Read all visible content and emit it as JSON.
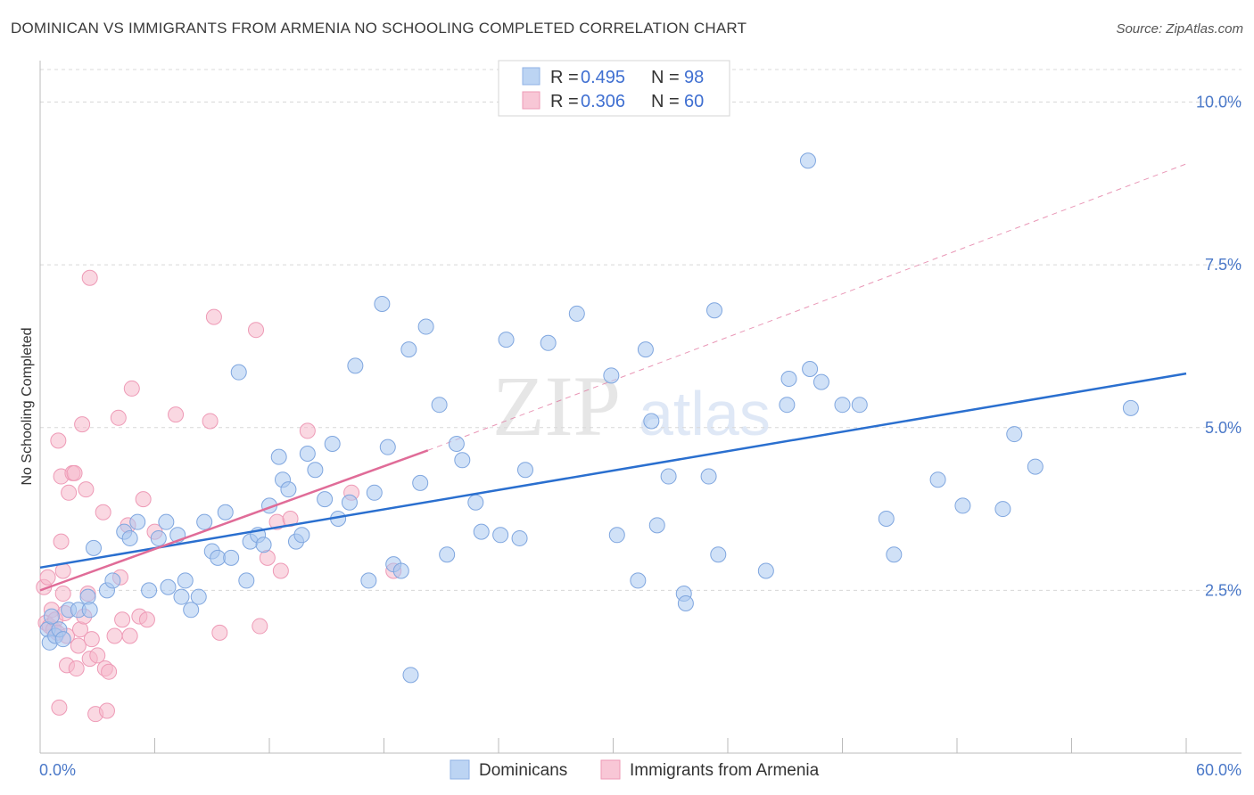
{
  "title": "DOMINICAN VS IMMIGRANTS FROM ARMENIA NO SCHOOLING COMPLETED CORRELATION CHART",
  "source": "Source: ZipAtlas.com",
  "watermark": {
    "zip": "ZIP",
    "atlas": "atlas"
  },
  "colors": {
    "blue": "#a9c8f0",
    "blue_line": "#2a6fcf",
    "pink": "#f5b8cb",
    "pink_line": "#e06c98",
    "tick": "#4a78c8",
    "grid": "#d8d8d8"
  },
  "legend_box": {
    "rows": [
      {
        "r_label": "R =",
        "r_value": "0.495",
        "n_label": "N =",
        "n_value": "98"
      },
      {
        "r_label": "R =",
        "r_value": "0.306",
        "n_label": "N =",
        "n_value": "60"
      }
    ]
  },
  "bottom_legend": [
    "Dominicans",
    "Immigrants from Armenia"
  ],
  "chart_data": {
    "type": "scatter",
    "title": "DOMINICAN VS IMMIGRANTS FROM ARMENIA NO SCHOOLING COMPLETED CORRELATION CHART",
    "xlabel": "",
    "ylabel": "No Schooling Completed",
    "xlim": [
      0,
      60
    ],
    "ylim": [
      0,
      10.5
    ],
    "x_tick_labels": [
      "0.0%",
      "60.0%"
    ],
    "y_ticks": [
      2.5,
      5.0,
      7.5,
      10.0
    ],
    "y_tick_labels": [
      "2.5%",
      "5.0%",
      "7.5%",
      "10.0%"
    ],
    "grid": true,
    "legend_position": "top-center",
    "series": [
      {
        "name": "Dominicans",
        "R": 0.495,
        "N": 98,
        "trend": {
          "x": [
            0,
            60
          ],
          "y": [
            2.85,
            5.83
          ]
        },
        "points": [
          [
            0.4,
            1.9
          ],
          [
            0.5,
            1.7
          ],
          [
            0.6,
            2.1
          ],
          [
            0.8,
            1.8
          ],
          [
            1.0,
            1.9
          ],
          [
            1.2,
            1.75
          ],
          [
            1.5,
            2.2
          ],
          [
            2.0,
            2.2
          ],
          [
            2.5,
            2.4
          ],
          [
            2.8,
            3.15
          ],
          [
            3.5,
            2.5
          ],
          [
            3.8,
            2.65
          ],
          [
            4.4,
            3.4
          ],
          [
            4.7,
            3.3
          ],
          [
            5.1,
            3.55
          ],
          [
            5.7,
            2.5
          ],
          [
            6.2,
            3.3
          ],
          [
            6.6,
            3.55
          ],
          [
            6.7,
            2.55
          ],
          [
            7.2,
            3.35
          ],
          [
            7.4,
            2.4
          ],
          [
            7.6,
            2.65
          ],
          [
            7.9,
            2.2
          ],
          [
            8.3,
            2.4
          ],
          [
            8.6,
            3.55
          ],
          [
            9.0,
            3.1
          ],
          [
            9.3,
            3.0
          ],
          [
            9.7,
            3.7
          ],
          [
            10.0,
            3.0
          ],
          [
            10.4,
            5.85
          ],
          [
            10.8,
            2.65
          ],
          [
            11.0,
            3.25
          ],
          [
            11.4,
            3.35
          ],
          [
            11.7,
            3.2
          ],
          [
            12.0,
            3.8
          ],
          [
            12.5,
            4.55
          ],
          [
            12.7,
            4.2
          ],
          [
            13.0,
            4.05
          ],
          [
            13.4,
            3.25
          ],
          [
            13.7,
            3.35
          ],
          [
            14.0,
            4.6
          ],
          [
            14.4,
            4.35
          ],
          [
            14.9,
            3.9
          ],
          [
            15.3,
            4.75
          ],
          [
            15.6,
            3.6
          ],
          [
            16.2,
            3.85
          ],
          [
            16.5,
            5.95
          ],
          [
            17.2,
            2.65
          ],
          [
            17.5,
            4.0
          ],
          [
            17.9,
            6.9
          ],
          [
            18.2,
            4.7
          ],
          [
            18.5,
            2.9
          ],
          [
            18.9,
            2.8
          ],
          [
            19.3,
            6.2
          ],
          [
            19.4,
            1.2
          ],
          [
            19.9,
            4.15
          ],
          [
            20.2,
            6.55
          ],
          [
            20.9,
            5.35
          ],
          [
            21.3,
            3.05
          ],
          [
            21.8,
            4.75
          ],
          [
            22.1,
            4.5
          ],
          [
            22.8,
            3.85
          ],
          [
            23.1,
            3.4
          ],
          [
            24.1,
            3.35
          ],
          [
            24.4,
            6.35
          ],
          [
            25.1,
            3.3
          ],
          [
            25.4,
            4.35
          ],
          [
            26.6,
            6.3
          ],
          [
            28.1,
            6.75
          ],
          [
            29.9,
            5.8
          ],
          [
            30.2,
            3.35
          ],
          [
            31.3,
            2.65
          ],
          [
            31.7,
            6.2
          ],
          [
            32.0,
            5.1
          ],
          [
            32.3,
            3.5
          ],
          [
            32.9,
            4.25
          ],
          [
            33.7,
            2.45
          ],
          [
            33.8,
            2.3
          ],
          [
            35.0,
            4.25
          ],
          [
            35.3,
            6.8
          ],
          [
            35.5,
            3.05
          ],
          [
            38.0,
            2.8
          ],
          [
            39.1,
            5.35
          ],
          [
            39.2,
            5.75
          ],
          [
            40.2,
            9.1
          ],
          [
            40.3,
            5.9
          ],
          [
            40.9,
            5.7
          ],
          [
            42.0,
            5.35
          ],
          [
            42.9,
            5.35
          ],
          [
            44.3,
            3.6
          ],
          [
            44.7,
            3.05
          ],
          [
            47.0,
            4.2
          ],
          [
            48.3,
            3.8
          ],
          [
            50.4,
            3.75
          ],
          [
            51.0,
            4.9
          ],
          [
            52.1,
            4.4
          ],
          [
            57.1,
            5.3
          ],
          [
            2.6,
            2.2
          ]
        ]
      },
      {
        "name": "Immigrants from Armenia",
        "R": 0.306,
        "N": 60,
        "trend": {
          "x": [
            0,
            20.3
          ],
          "y": [
            2.5,
            4.65
          ]
        },
        "trend_extended": {
          "x": [
            20.3,
            60
          ],
          "y": [
            4.65,
            9.05
          ]
        },
        "points": [
          [
            0.2,
            2.55
          ],
          [
            0.3,
            2.0
          ],
          [
            0.4,
            2.7
          ],
          [
            0.5,
            1.95
          ],
          [
            0.6,
            2.2
          ],
          [
            0.7,
            1.9
          ],
          [
            0.8,
            2.05
          ],
          [
            0.9,
            1.85
          ],
          [
            0.95,
            4.8
          ],
          [
            1.0,
            0.7
          ],
          [
            1.1,
            4.25
          ],
          [
            1.1,
            3.25
          ],
          [
            1.2,
            2.8
          ],
          [
            1.2,
            2.45
          ],
          [
            1.3,
            2.15
          ],
          [
            1.4,
            1.8
          ],
          [
            1.4,
            1.35
          ],
          [
            1.5,
            4.0
          ],
          [
            1.7,
            4.3
          ],
          [
            1.8,
            4.3
          ],
          [
            1.9,
            1.3
          ],
          [
            2.0,
            1.65
          ],
          [
            2.1,
            1.9
          ],
          [
            2.2,
            5.05
          ],
          [
            2.3,
            2.1
          ],
          [
            2.4,
            4.05
          ],
          [
            2.5,
            2.45
          ],
          [
            2.6,
            7.3
          ],
          [
            2.6,
            1.45
          ],
          [
            2.7,
            1.75
          ],
          [
            2.9,
            0.6
          ],
          [
            3.0,
            1.5
          ],
          [
            3.3,
            3.7
          ],
          [
            3.4,
            1.3
          ],
          [
            3.5,
            0.65
          ],
          [
            3.6,
            1.25
          ],
          [
            3.9,
            1.8
          ],
          [
            4.1,
            5.15
          ],
          [
            4.2,
            2.7
          ],
          [
            4.3,
            2.05
          ],
          [
            4.6,
            3.5
          ],
          [
            4.7,
            1.8
          ],
          [
            4.8,
            5.6
          ],
          [
            5.2,
            2.1
          ],
          [
            5.4,
            3.9
          ],
          [
            5.6,
            2.05
          ],
          [
            6.0,
            3.4
          ],
          [
            7.1,
            5.2
          ],
          [
            8.9,
            5.1
          ],
          [
            9.1,
            6.7
          ],
          [
            9.4,
            1.85
          ],
          [
            11.3,
            6.5
          ],
          [
            11.5,
            1.95
          ],
          [
            11.9,
            3.0
          ],
          [
            12.4,
            3.55
          ],
          [
            12.6,
            2.8
          ],
          [
            13.1,
            3.6
          ],
          [
            14.0,
            4.95
          ],
          [
            16.3,
            4.0
          ],
          [
            18.5,
            2.8
          ]
        ]
      }
    ]
  }
}
